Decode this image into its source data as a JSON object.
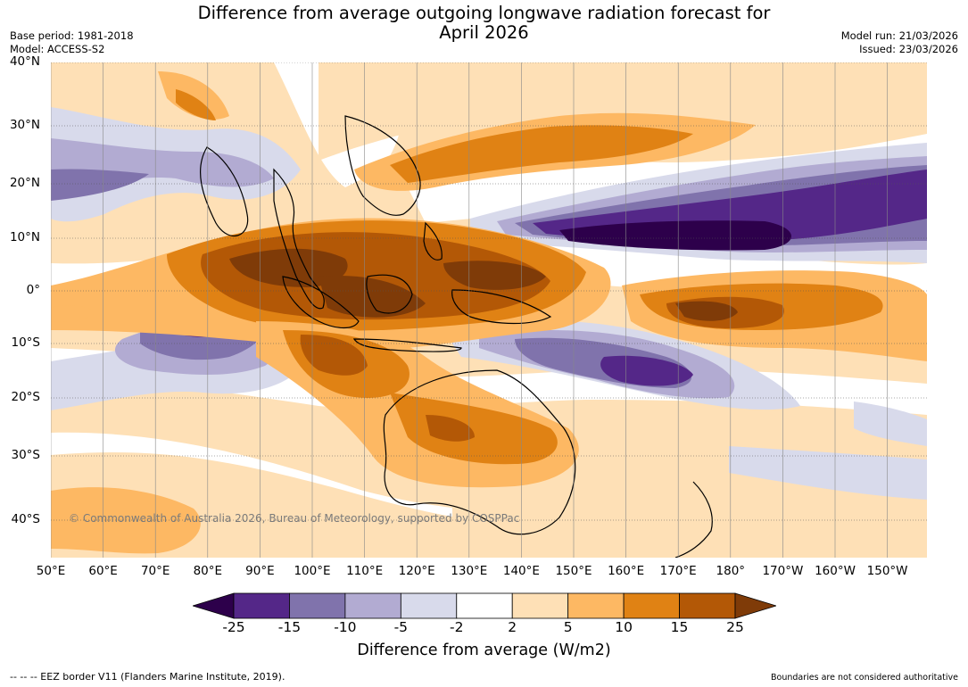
{
  "title": {
    "line1": "Difference from average outgoing longwave radiation forecast for",
    "line2": "April 2026"
  },
  "meta": {
    "base_period": "Base period: 1981-2018",
    "model": "Model: ACCESS-S2",
    "model_run": "Model run: 21/03/2026",
    "issued": "Issued: 23/03/2026"
  },
  "map": {
    "lat_labels": [
      "40°N",
      "30°N",
      "20°N",
      "10°N",
      "0°",
      "10°S",
      "20°S",
      "30°S",
      "40°S"
    ],
    "lon_labels": [
      "50°E",
      "60°E",
      "70°E",
      "80°E",
      "90°E",
      "100°E",
      "110°E",
      "120°E",
      "130°E",
      "140°E",
      "150°E",
      "160°E",
      "170°E",
      "180°",
      "170°W",
      "160°W",
      "150°W"
    ],
    "copyright": "© Commonwealth of Australia 2026, Bureau of Meteorology, supported by COSPPac"
  },
  "colorbar": {
    "ticks": [
      "-25",
      "-15",
      "-10",
      "-5",
      "-2",
      "2",
      "5",
      "10",
      "15",
      "25"
    ],
    "colors": [
      "#2d004b",
      "#542788",
      "#8073ac",
      "#b2abd2",
      "#d8daeb",
      "#ffffff",
      "#fee0b6",
      "#fdb863",
      "#e08214",
      "#b35806",
      "#7f3b08"
    ],
    "label": "Difference from average (W/m2)"
  },
  "footer": {
    "eez": "--  --  -- EEZ border V11 (Flanders Marine Institute, 2019).",
    "boundaries": "Boundaries are not considered authoritative"
  }
}
